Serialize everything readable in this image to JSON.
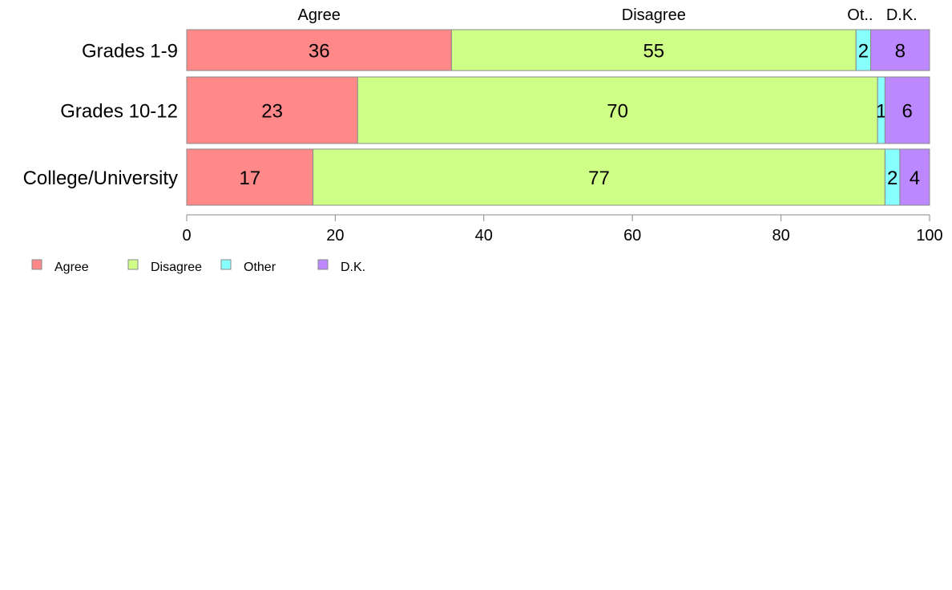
{
  "chart_data": {
    "type": "bar",
    "orientation": "horizontal",
    "stacked": true,
    "categories": [
      "Grades 1-9",
      "Grades 10-12",
      "College/University"
    ],
    "series": [
      {
        "name": "Agree",
        "values": [
          36,
          23,
          17
        ],
        "color": "#ff8888"
      },
      {
        "name": "Disagree",
        "values": [
          55,
          70,
          77
        ],
        "color": "#d0ff88"
      },
      {
        "name": "Other",
        "values": [
          2,
          1,
          2
        ],
        "color": "#88ffff"
      },
      {
        "name": "D.K.",
        "values": [
          8,
          6,
          4
        ],
        "color": "#bb88ff"
      }
    ],
    "top_labels": [
      "Agree",
      "Disagree",
      "Ot..",
      "D.K."
    ],
    "xlim": [
      0,
      100
    ],
    "xticks": [
      0,
      20,
      40,
      60,
      80,
      100
    ],
    "legend_position": "bottom-left",
    "grid": false
  }
}
